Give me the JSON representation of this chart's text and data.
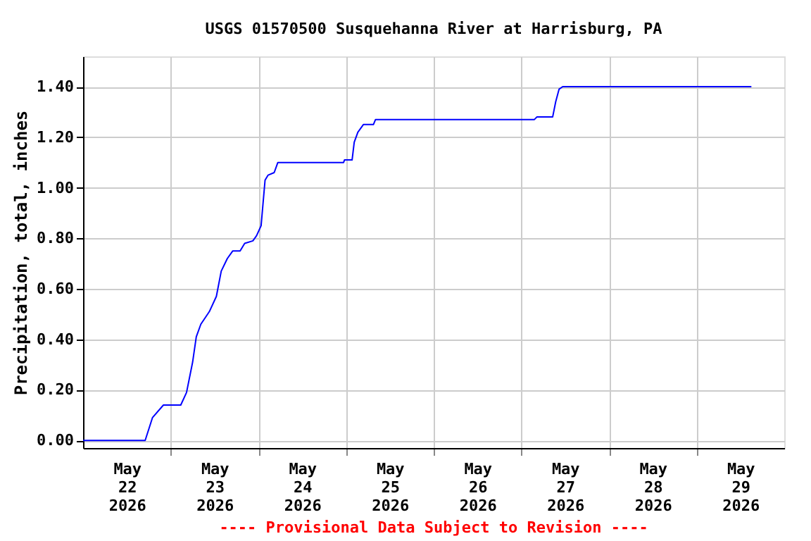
{
  "chart_data": {
    "type": "line",
    "title": "USGS 01570500 Susquehanna River at Harrisburg, PA",
    "ylabel": "Precipitation, total, inches",
    "annotations": [
      "---- Provisional Data Subject to Revision ----"
    ],
    "x": [
      "2026-05-22T00:00",
      "2026-05-22T17:00",
      "2026-05-22T19:00",
      "2026-05-22T22:00",
      "2026-05-23T02:45",
      "2026-05-23T04:20",
      "2026-05-23T06:00",
      "2026-05-23T07:00",
      "2026-05-23T08:15",
      "2026-05-23T10:35",
      "2026-05-23T12:30",
      "2026-05-23T13:50",
      "2026-05-23T15:30",
      "2026-05-23T17:00",
      "2026-05-23T19:00",
      "2026-05-23T20:15",
      "2026-05-23T22:30",
      "2026-05-23T23:30",
      "2026-05-24T00:45",
      "2026-05-24T01:50",
      "2026-05-24T02:40",
      "2026-05-24T04:20",
      "2026-05-24T05:20",
      "2026-05-24T08:30",
      "2026-05-24T23:20",
      "2026-05-24T23:35",
      "2026-05-25T01:40",
      "2026-05-25T02:15",
      "2026-05-25T03:15",
      "2026-05-25T04:45",
      "2026-05-25T07:30",
      "2026-05-25T08:05",
      "2026-05-27T03:35",
      "2026-05-27T04:15",
      "2026-05-27T08:35",
      "2026-05-27T09:25",
      "2026-05-27T10:20",
      "2026-05-27T11:20",
      "2026-05-29T15:00"
    ],
    "series": [
      {
        "color": "#0000ff",
        "values": [
          0,
          0,
          0.09,
          0.14,
          0.14,
          0.19,
          0.31,
          0.41,
          0.46,
          0.51,
          0.57,
          0.67,
          0.72,
          0.75,
          0.75,
          0.78,
          0.79,
          0.81,
          0.85,
          1.03,
          1.05,
          1.06,
          1.1,
          1.1,
          1.1,
          1.11,
          1.11,
          1.18,
          1.22,
          1.25,
          1.25,
          1.27,
          1.27,
          1.28,
          1.28,
          1.34,
          1.39,
          1.4,
          1.4
        ]
      }
    ],
    "xlim": [
      "2026-05-22T00:00",
      "2026-05-30T00:00"
    ],
    "xticks": [
      {
        "value": "2026-05-22T12:00",
        "label": "May\n22\n2026"
      },
      {
        "value": "2026-05-23T00:00",
        "label": null
      },
      {
        "value": "2026-05-23T12:00",
        "label": "May\n23\n2026"
      },
      {
        "value": "2026-05-24T00:00",
        "label": null
      },
      {
        "value": "2026-05-24T12:00",
        "label": "May\n24\n2026"
      },
      {
        "value": "2026-05-25T00:00",
        "label": null
      },
      {
        "value": "2026-05-25T12:00",
        "label": "May\n25\n2026"
      },
      {
        "value": "2026-05-26T00:00",
        "label": null
      },
      {
        "value": "2026-05-26T12:00",
        "label": "May\n26\n2026"
      },
      {
        "value": "2026-05-27T00:00",
        "label": null
      },
      {
        "value": "2026-05-27T12:00",
        "label": "May\n27\n2026"
      },
      {
        "value": "2026-05-28T00:00",
        "label": null
      },
      {
        "value": "2026-05-28T12:00",
        "label": "May\n28\n2026"
      },
      {
        "value": "2026-05-29T00:00",
        "label": null
      },
      {
        "value": "2026-05-29T12:00",
        "label": "May\n29\n2026"
      }
    ],
    "ylim": [
      -0.03,
      1.52
    ],
    "yticks": [
      {
        "value": 0,
        "label": "0.00"
      },
      {
        "value": 0.2,
        "label": "0.20"
      },
      {
        "value": 0.4,
        "label": "0.40"
      },
      {
        "value": 0.6,
        "label": "0.60"
      },
      {
        "value": 0.8,
        "label": "0.80"
      },
      {
        "value": 1.0,
        "label": "1.00"
      },
      {
        "value": 1.2,
        "label": "1.20"
      },
      {
        "value": 1.4,
        "label": "1.40"
      }
    ],
    "grid": true,
    "marker": "none",
    "line_style": "solid"
  }
}
